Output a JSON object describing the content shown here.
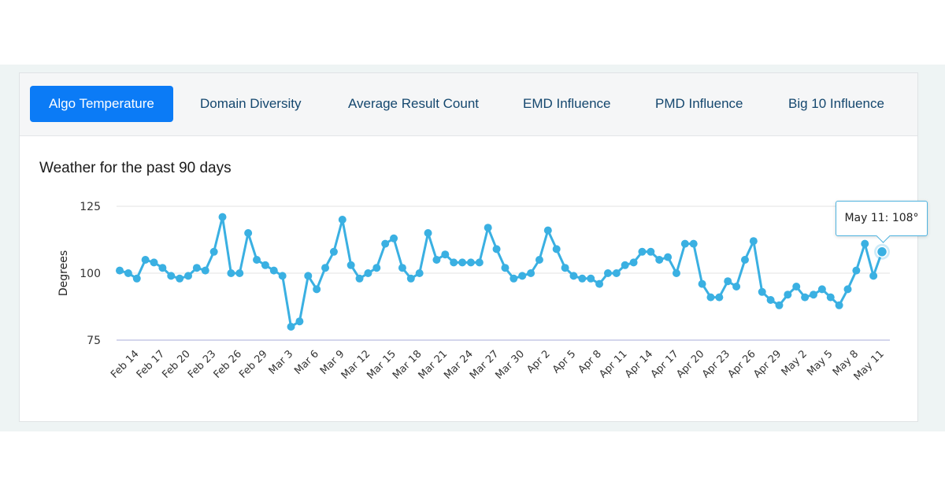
{
  "tabs": [
    {
      "label": "Algo Temperature",
      "active": true
    },
    {
      "label": "Domain Diversity",
      "active": false
    },
    {
      "label": "Average Result Count",
      "active": false
    },
    {
      "label": "EMD Influence",
      "active": false
    },
    {
      "label": "PMD Influence",
      "active": false
    },
    {
      "label": "Big 10 Influence",
      "active": false
    }
  ],
  "colors": {
    "accent": "#0b7bf6",
    "tab_text": "#14476e",
    "line": "#3ab0e2"
  },
  "tooltip": {
    "text": "May 11: 108°"
  },
  "chart_data": {
    "type": "line",
    "title": "Weather for the past 90 days",
    "xlabel": "",
    "ylabel": "Degrees",
    "ylim": [
      75,
      125
    ],
    "yticks": [
      75,
      100,
      125
    ],
    "grid": true,
    "legend": "none",
    "x": [
      "Feb 12",
      "Feb 13",
      "Feb 14",
      "Feb 15",
      "Feb 16",
      "Feb 17",
      "Feb 18",
      "Feb 19",
      "Feb 20",
      "Feb 21",
      "Feb 22",
      "Feb 23",
      "Feb 24",
      "Feb 25",
      "Feb 26",
      "Feb 27",
      "Feb 28",
      "Feb 29",
      "Mar 1",
      "Mar 2",
      "Mar 3",
      "Mar 4",
      "Mar 5",
      "Mar 6",
      "Mar 7",
      "Mar 8",
      "Mar 9",
      "Mar 10",
      "Mar 11",
      "Mar 12",
      "Mar 13",
      "Mar 14",
      "Mar 15",
      "Mar 16",
      "Mar 17",
      "Mar 18",
      "Mar 19",
      "Mar 20",
      "Mar 21",
      "Mar 22",
      "Mar 23",
      "Mar 24",
      "Mar 25",
      "Mar 26",
      "Mar 27",
      "Mar 28",
      "Mar 29",
      "Mar 30",
      "Mar 31",
      "Apr 1",
      "Apr 2",
      "Apr 3",
      "Apr 4",
      "Apr 5",
      "Apr 6",
      "Apr 7",
      "Apr 8",
      "Apr 9",
      "Apr 10",
      "Apr 11",
      "Apr 12",
      "Apr 13",
      "Apr 14",
      "Apr 15",
      "Apr 16",
      "Apr 17",
      "Apr 18",
      "Apr 19",
      "Apr 20",
      "Apr 21",
      "Apr 22",
      "Apr 23",
      "Apr 24",
      "Apr 25",
      "Apr 26",
      "Apr 27",
      "Apr 28",
      "Apr 29",
      "Apr 30",
      "May 1",
      "May 2",
      "May 3",
      "May 4",
      "May 5",
      "May 6",
      "May 7",
      "May 8",
      "May 9",
      "May 10",
      "May 11"
    ],
    "xticklabels": [
      "Feb 14",
      "Feb 17",
      "Feb 20",
      "Feb 23",
      "Feb 26",
      "Feb 29",
      "Mar 3",
      "Mar 6",
      "Mar 9",
      "Mar 12",
      "Mar 15",
      "Mar 18",
      "Mar 21",
      "Mar 24",
      "Mar 27",
      "Mar 30",
      "Apr 2",
      "Apr 5",
      "Apr 8",
      "Apr 11",
      "Apr 14",
      "Apr 17",
      "Apr 20",
      "Apr 23",
      "Apr 26",
      "Apr 29",
      "May 2",
      "May 5",
      "May 8",
      "May 11"
    ],
    "series": [
      {
        "name": "Degrees",
        "values": [
          101,
          100,
          98,
          105,
          104,
          102,
          99,
          98,
          99,
          102,
          101,
          108,
          121,
          100,
          100,
          115,
          105,
          103,
          101,
          99,
          80,
          82,
          99,
          94,
          102,
          108,
          120,
          103,
          98,
          100,
          102,
          111,
          113,
          102,
          98,
          100,
          115,
          105,
          107,
          104,
          104,
          104,
          104,
          117,
          109,
          102,
          98,
          99,
          100,
          105,
          116,
          109,
          102,
          99,
          98,
          98,
          96,
          100,
          100,
          103,
          104,
          108,
          108,
          105,
          106,
          100,
          111,
          111,
          96,
          91,
          91,
          97,
          95,
          105,
          112,
          93,
          90,
          88,
          92,
          95,
          91,
          92,
          94,
          91,
          88,
          94,
          101,
          111,
          99,
          108
        ]
      }
    ],
    "highlighted_point": {
      "x": "May 11",
      "value": 108
    }
  }
}
